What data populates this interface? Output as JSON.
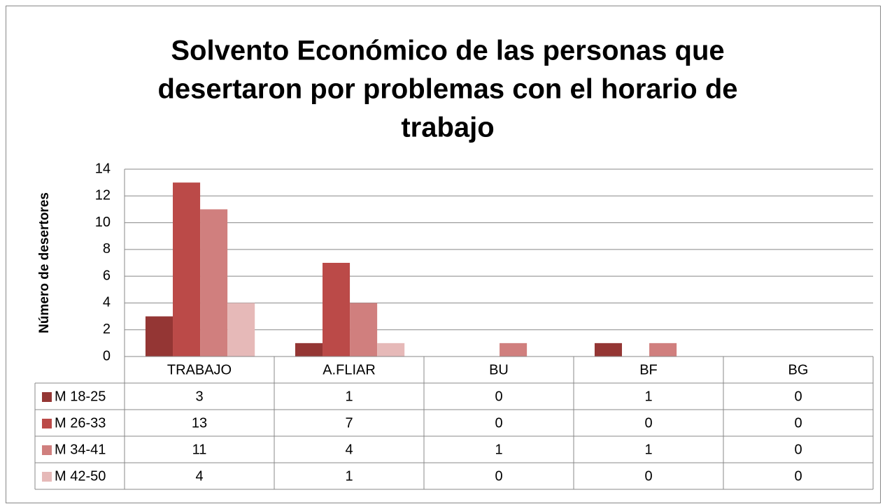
{
  "chart_data": {
    "type": "bar",
    "title": [
      "Solvento Económico de las personas que",
      "desertaron por problemas con el horario de",
      "trabajo"
    ],
    "y_label": "Número de desertores",
    "categories": [
      "TRABAJO",
      "A.FLIAR",
      "BU",
      "BF",
      "BG"
    ],
    "series": [
      {
        "name": "M 18-25",
        "color": "#943634",
        "values": [
          3,
          1,
          0,
          1,
          0
        ]
      },
      {
        "name": "M 26-33",
        "color": "#bb4a48",
        "values": [
          13,
          7,
          0,
          0,
          0
        ]
      },
      {
        "name": "M 34-41",
        "color": "#d07f7e",
        "values": [
          11,
          4,
          1,
          1,
          0
        ]
      },
      {
        "name": "M 42-50",
        "color": "#e6b9b8",
        "values": [
          4,
          1,
          0,
          0,
          0
        ]
      }
    ],
    "ylim": [
      0,
      14
    ],
    "yticks": [
      0,
      2,
      4,
      6,
      8,
      10,
      12,
      14
    ],
    "grid": true,
    "data_table": true
  }
}
